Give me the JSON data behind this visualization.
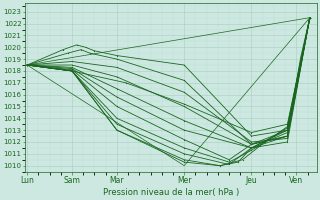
{
  "bg_color": "#cce8e0",
  "grid_color_major": "#aaccc0",
  "grid_color_minor": "#bbddd5",
  "line_color": "#1a6620",
  "xlabel": "Pression niveau de la mer( hPa )",
  "ylim": [
    1009.5,
    1023.7
  ],
  "yticks": [
    1010,
    1011,
    1012,
    1013,
    1014,
    1015,
    1016,
    1017,
    1018,
    1019,
    1020,
    1021,
    1022,
    1023
  ],
  "xtick_labels": [
    "Lun",
    "Sam",
    "Mar",
    "Mer",
    "Jeu",
    "Ven"
  ],
  "xtick_positions": [
    0.0,
    1.0,
    2.0,
    3.5,
    5.0,
    6.0
  ],
  "xlim": [
    -0.05,
    6.45
  ],
  "forecast_lines": [
    [
      0.0,
      1018.5,
      0.8,
      1019.8,
      1.1,
      1020.2,
      1.3,
      1020.0,
      1.5,
      1019.7,
      2.0,
      1019.3,
      3.5,
      1018.5,
      5.0,
      1012.5,
      5.8,
      1013.0,
      6.3,
      1022.5
    ],
    [
      0.0,
      1018.5,
      0.9,
      1019.5,
      1.2,
      1019.8,
      1.4,
      1019.5,
      2.0,
      1019.0,
      3.5,
      1017.2,
      5.0,
      1011.8,
      5.8,
      1012.5,
      6.3,
      1022.5
    ],
    [
      0.0,
      1018.5,
      1.0,
      1018.8,
      2.0,
      1018.3,
      3.5,
      1016.2,
      5.0,
      1012.0,
      5.8,
      1012.3,
      6.3,
      1022.5
    ],
    [
      0.0,
      1018.5,
      1.0,
      1018.5,
      2.0,
      1017.5,
      3.5,
      1015.0,
      5.0,
      1011.8,
      5.8,
      1012.5,
      6.3,
      1022.5
    ],
    [
      0.0,
      1018.5,
      1.0,
      1018.3,
      2.0,
      1016.5,
      3.5,
      1013.8,
      5.0,
      1011.5,
      5.8,
      1012.5,
      6.3,
      1022.5
    ],
    [
      0.0,
      1018.5,
      1.0,
      1018.2,
      2.0,
      1015.8,
      3.5,
      1013.0,
      5.0,
      1011.5,
      5.8,
      1012.0,
      6.3,
      1022.5
    ],
    [
      0.0,
      1018.5,
      1.0,
      1018.1,
      2.0,
      1015.0,
      3.5,
      1012.2,
      4.5,
      1010.5,
      5.0,
      1011.8,
      5.8,
      1013.0,
      6.3,
      1022.5
    ],
    [
      0.0,
      1018.5,
      1.0,
      1018.0,
      2.0,
      1014.0,
      3.5,
      1011.5,
      4.5,
      1010.3,
      5.0,
      1011.3,
      5.8,
      1013.2,
      6.3,
      1022.5
    ],
    [
      0.0,
      1018.5,
      1.0,
      1018.0,
      2.0,
      1013.5,
      3.5,
      1011.0,
      4.5,
      1010.1,
      5.0,
      1011.5,
      5.8,
      1013.0,
      6.3,
      1022.5
    ],
    [
      0.0,
      1018.5,
      1.0,
      1018.0,
      2.0,
      1013.0,
      3.5,
      1010.5,
      4.3,
      1010.0,
      4.7,
      1010.3,
      5.0,
      1011.5,
      5.5,
      1012.5,
      5.8,
      1013.3,
      6.3,
      1022.5
    ],
    [
      0.0,
      1018.5,
      1.0,
      1018.0,
      2.0,
      1013.0,
      3.5,
      1010.3,
      4.3,
      1010.0,
      4.8,
      1010.5,
      5.3,
      1012.0,
      5.8,
      1012.8,
      6.1,
      1019.2,
      6.3,
      1022.5
    ],
    [
      0.0,
      1018.5,
      1.0,
      1018.0,
      2.2,
      1017.0,
      3.5,
      1015.2,
      5.0,
      1012.8,
      5.8,
      1013.5,
      6.3,
      1022.5
    ]
  ],
  "straight_lines": [
    [
      0.0,
      1018.5,
      6.3,
      1022.5
    ],
    [
      0.0,
      1018.5,
      3.5,
      1010.0,
      6.3,
      1022.5
    ]
  ]
}
